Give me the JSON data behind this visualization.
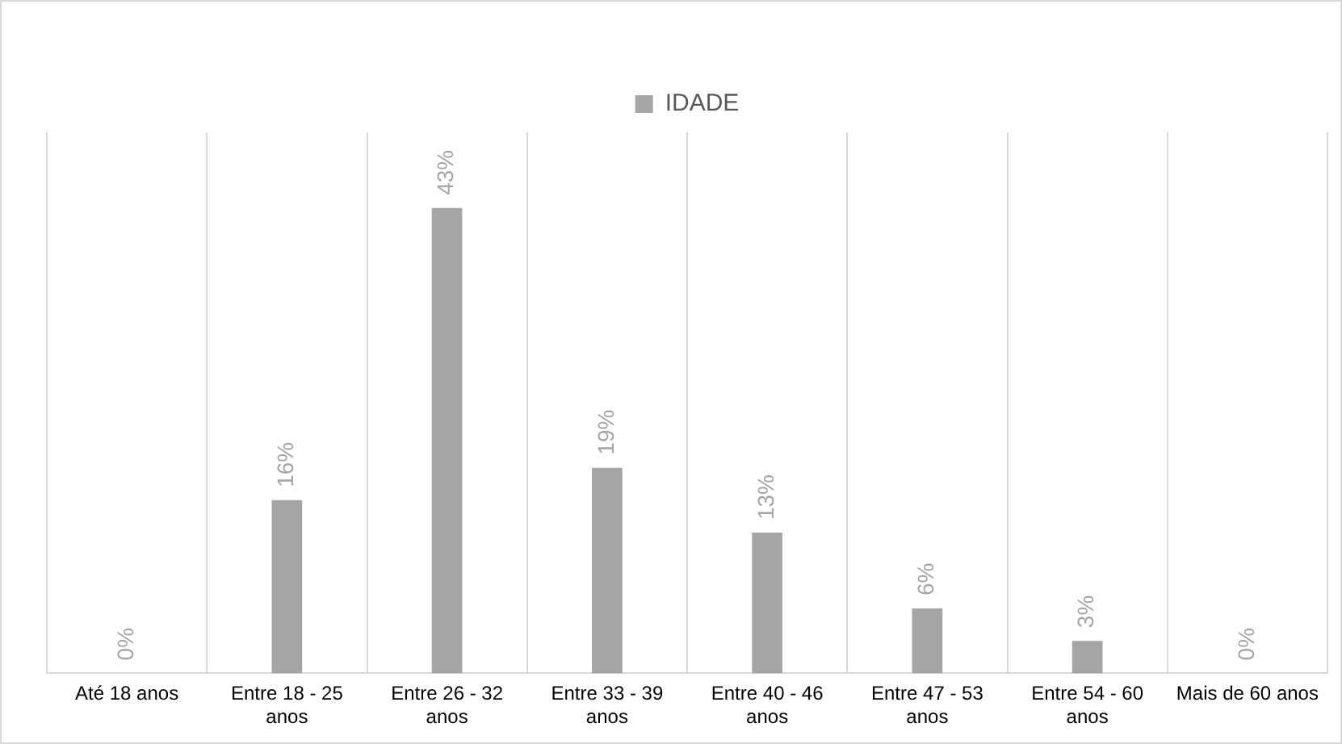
{
  "chart_data": {
    "type": "bar",
    "categories": [
      "Até 18 anos",
      "Entre 18 - 25 anos",
      "Entre 26 - 32 anos",
      "Entre 33 - 39 anos",
      "Entre 40 - 46 anos",
      "Entre 47 - 53 anos",
      "Entre 54 - 60 anos",
      "Mais de 60 anos"
    ],
    "series": [
      {
        "name": "IDADE",
        "color": "#a5a5a5",
        "values": [
          0,
          16,
          43,
          19,
          13,
          6,
          3,
          0
        ],
        "value_labels": [
          "0%",
          "16%",
          "43%",
          "19%",
          "13%",
          "6%",
          "3%",
          "0%"
        ]
      }
    ],
    "ylim": [
      0,
      50
    ],
    "tick_labels": "x",
    "grid": "x",
    "legend": "top"
  }
}
